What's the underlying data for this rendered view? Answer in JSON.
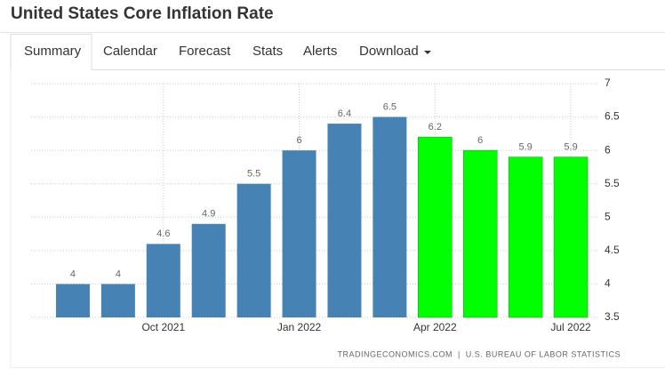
{
  "header": {
    "title": "United States Core Inflation Rate"
  },
  "tabs": [
    "Summary",
    "Calendar",
    "Forecast",
    "Stats",
    "Alerts",
    "Download"
  ],
  "active_tab": "Summary",
  "chart_data": {
    "type": "bar",
    "categories": [
      null,
      null,
      "Oct 2021",
      null,
      null,
      "Jan 2022",
      null,
      null,
      "Apr 2022",
      null,
      null,
      "Jul 2022"
    ],
    "values": [
      4,
      4,
      4.6,
      4.9,
      5.5,
      6,
      6.4,
      6.5,
      6.2,
      6,
      5.9,
      5.9
    ],
    "colors": [
      "#4682b4",
      "#4682b4",
      "#4682b4",
      "#4682b4",
      "#4682b4",
      "#4682b4",
      "#4682b4",
      "#4682b4",
      "#00ff00",
      "#00ff00",
      "#00ff00",
      "#00ff00"
    ],
    "ylim": [
      3.5,
      7
    ],
    "yticks": [
      3.5,
      4,
      4.5,
      5,
      5.5,
      6,
      6.5,
      7
    ],
    "grid": true,
    "source": "TRADINGECONOMICS.COM  |  U.S. BUREAU OF LABOR STATISTICS"
  }
}
